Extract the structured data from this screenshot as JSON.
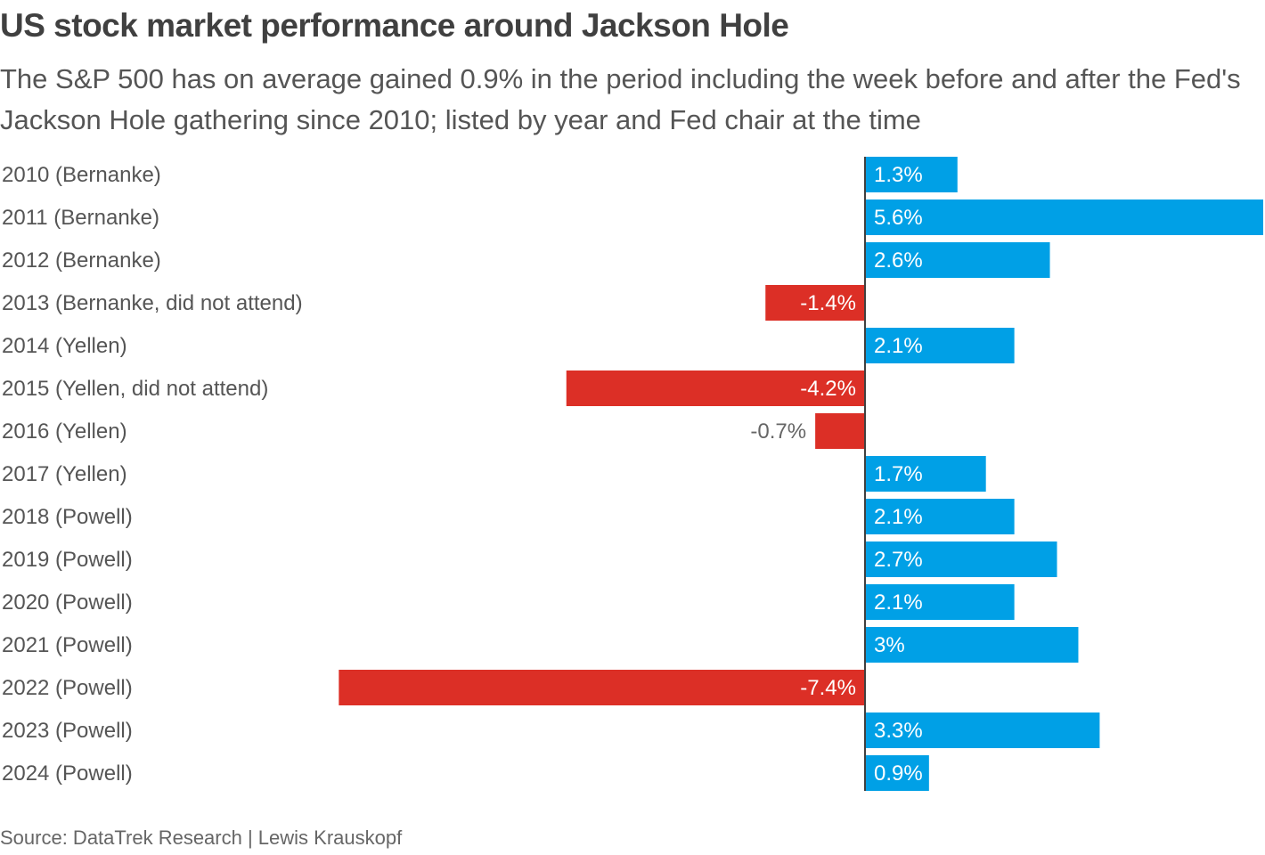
{
  "header": {
    "title": "US stock market performance around Jackson Hole",
    "subtitle": "The S&P 500 has on average gained 0.9% in the period including the week before and after the Fed's Jackson Hole gathering since 2010; listed by year and Fed chair at the time"
  },
  "footer": {
    "source": "Source: DataTrek Research | Lewis Krauskopf"
  },
  "colors": {
    "positive": "#00A0E6",
    "negative": "#DC2F26",
    "axis": "#404040",
    "label_inside": "#ffffff",
    "label_outside": "#666666"
  },
  "chart_data": {
    "type": "bar",
    "orientation": "horizontal",
    "title": "US stock market performance around Jackson Hole",
    "xlabel": "",
    "ylabel": "",
    "unit": "%",
    "xlim": [
      -7.4,
      5.6
    ],
    "grid": false,
    "legend": "none",
    "categories": [
      "2010 (Bernanke)",
      "2011 (Bernanke)",
      "2012 (Bernanke)",
      "2013 (Bernanke, did not attend)",
      "2014 (Yellen)",
      "2015 (Yellen, did not attend)",
      "2016 (Yellen)",
      "2017 (Yellen)",
      "2018 (Powell)",
      "2019 (Powell)",
      "2020 (Powell)",
      "2021 (Powell)",
      "2022 (Powell)",
      "2023 (Powell)",
      "2024 (Powell)"
    ],
    "values": [
      1.3,
      5.6,
      2.6,
      -1.4,
      2.1,
      -4.2,
      -0.7,
      1.7,
      2.1,
      2.7,
      2.1,
      3.0,
      -7.4,
      3.3,
      0.9
    ],
    "value_labels": [
      "1.3%",
      "5.6%",
      "2.6%",
      "-1.4%",
      "2.1%",
      "-4.2%",
      "-0.7%",
      "1.7%",
      "2.1%",
      "2.7%",
      "2.1%",
      "3%",
      "-7.4%",
      "3.3%",
      "0.9%"
    ]
  }
}
